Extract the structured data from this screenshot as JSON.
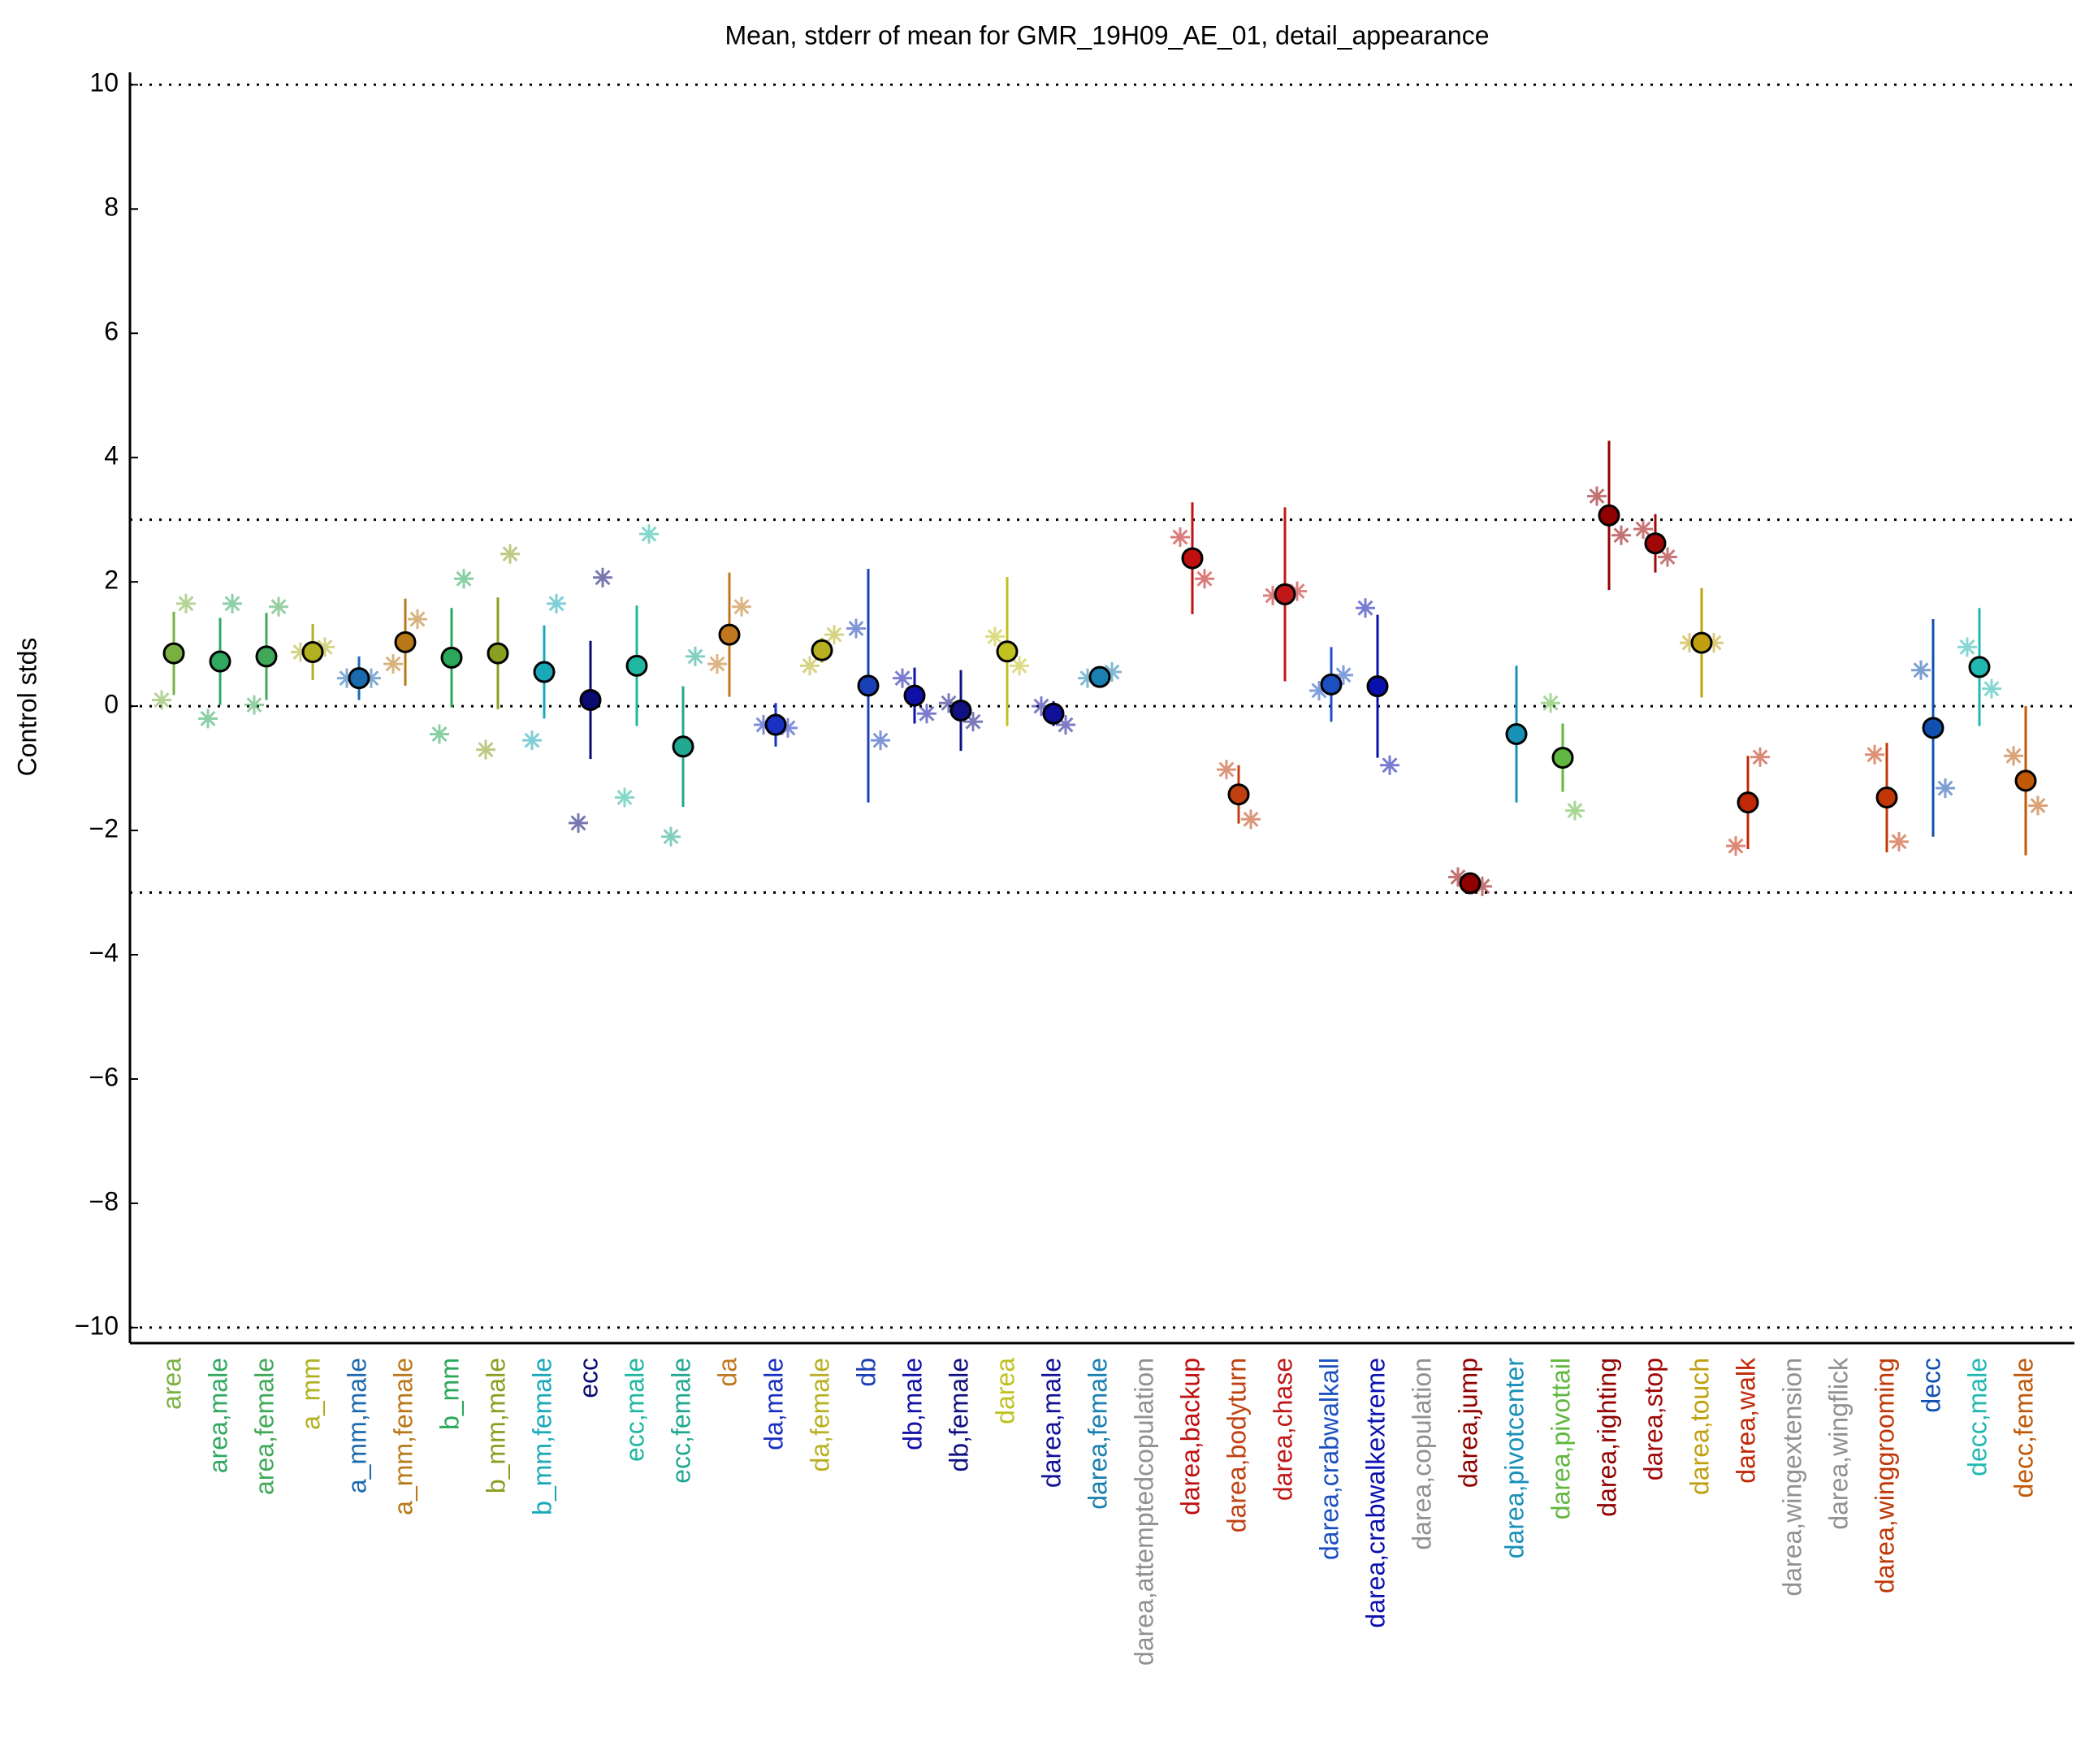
{
  "chart_data": {
    "type": "errorbar",
    "title": "Mean, stderr of mean for GMR_19H09_AE_01, detail_appearance",
    "ylabel": "Control stds",
    "ylim": [
      -10.25,
      10.2
    ],
    "yticks": [
      {
        "value": -10,
        "label": "−10"
      },
      {
        "value": -8,
        "label": "−8"
      },
      {
        "value": -6,
        "label": "−6"
      },
      {
        "value": -4,
        "label": "−4"
      },
      {
        "value": -2,
        "label": "−2"
      },
      0,
      2,
      4,
      6,
      8,
      10
    ],
    "hlines": [
      -10,
      -3,
      0,
      3,
      10
    ],
    "categories": [
      "area",
      "area,male",
      "area,female",
      "a_mm",
      "a_mm,male",
      "a_mm,female",
      "b_mm",
      "b_mm,male",
      "b_mm,female",
      "ecc",
      "ecc,male",
      "ecc,female",
      "da",
      "da,male",
      "da,female",
      "db",
      "db,male",
      "db,female",
      "darea",
      "darea,male",
      "darea,female",
      "darea,attemptedcopulation",
      "darea,backup",
      "darea,bodyturn",
      "darea,chase",
      "darea,crabwalkall",
      "darea,crabwalkextreme",
      "darea,copulation",
      "darea,jump",
      "darea,pivotcenter",
      "darea,pivottail",
      "darea,righting",
      "darea,stop",
      "darea,touch",
      "darea,walk",
      "darea,wingextension",
      "darea,wingflick",
      "darea,winggrooming",
      "decc",
      "decc,male",
      "decc,female"
    ],
    "values": [
      0.85,
      0.72,
      0.8,
      0.87,
      0.45,
      1.03,
      0.78,
      0.85,
      0.55,
      0.1,
      0.65,
      -0.65,
      1.15,
      -0.3,
      0.9,
      0.33,
      0.17,
      -0.07,
      0.88,
      -0.12,
      0.47,
      null,
      2.38,
      -1.42,
      1.8,
      0.35,
      0.32,
      null,
      -2.85,
      -0.45,
      -0.83,
      3.07,
      2.62,
      1.02,
      -1.55,
      null,
      null,
      -1.47,
      -0.35,
      0.63,
      -1.2
    ],
    "errors": [
      0.67,
      0.7,
      0.7,
      0.45,
      0.35,
      0.7,
      0.8,
      0.9,
      0.75,
      0.95,
      0.97,
      0.97,
      1.0,
      0.35,
      0.2,
      1.88,
      0.45,
      0.65,
      1.2,
      0.2,
      0.1,
      null,
      0.9,
      0.47,
      1.4,
      0.6,
      1.15,
      null,
      0.1,
      1.1,
      0.55,
      1.2,
      0.47,
      0.88,
      0.75,
      null,
      null,
      0.88,
      1.75,
      0.95,
      1.2
    ],
    "star_left": [
      0.1,
      -0.2,
      0.02,
      0.87,
      0.45,
      0.68,
      -0.45,
      -0.7,
      -0.55,
      -1.88,
      -1.47,
      -2.1,
      0.68,
      -0.3,
      0.65,
      1.25,
      0.45,
      0.05,
      1.12,
      0.0,
      0.45,
      null,
      2.72,
      -1.02,
      1.78,
      0.25,
      1.58,
      null,
      -2.75,
      null,
      0.05,
      3.38,
      2.85,
      1.02,
      -2.25,
      null,
      null,
      -0.78,
      0.58,
      0.95,
      -0.8
    ],
    "star_right": [
      1.65,
      1.65,
      1.6,
      0.95,
      0.45,
      1.4,
      2.05,
      2.45,
      1.65,
      2.07,
      2.77,
      0.8,
      1.6,
      -0.35,
      1.15,
      -0.55,
      -0.12,
      -0.25,
      0.65,
      -0.3,
      0.55,
      null,
      2.05,
      -1.82,
      1.85,
      0.5,
      -0.95,
      null,
      -2.9,
      null,
      -1.68,
      2.75,
      2.4,
      1.02,
      -0.82,
      null,
      null,
      -2.18,
      -1.32,
      0.28,
      -1.6
    ],
    "colors": [
      "#7ab040",
      "#30a860",
      "#40a858",
      "#b0b020",
      "#1a6ab0",
      "#b87818",
      "#28a858",
      "#88a020",
      "#18a8b8",
      "#0a0a70",
      "#20b8a0",
      "#20a890",
      "#c07820",
      "#1a30c0",
      "#b8b020",
      "#1a40b8",
      "#1010a8",
      "#101080",
      "#c0c020",
      "#101098",
      "#1a80b0",
      "#909090",
      "#c01010",
      "#c04010",
      "#c01818",
      "#1a50c0",
      "#0a10b0",
      "#909090",
      "#900000",
      "#1890b8",
      "#60b840",
      "#900000",
      "#a00808",
      "#c0a010",
      "#c02808",
      "#909090",
      "#909090",
      "#c03808",
      "#1050b0",
      "#20b8b0",
      "#c05808"
    ]
  }
}
